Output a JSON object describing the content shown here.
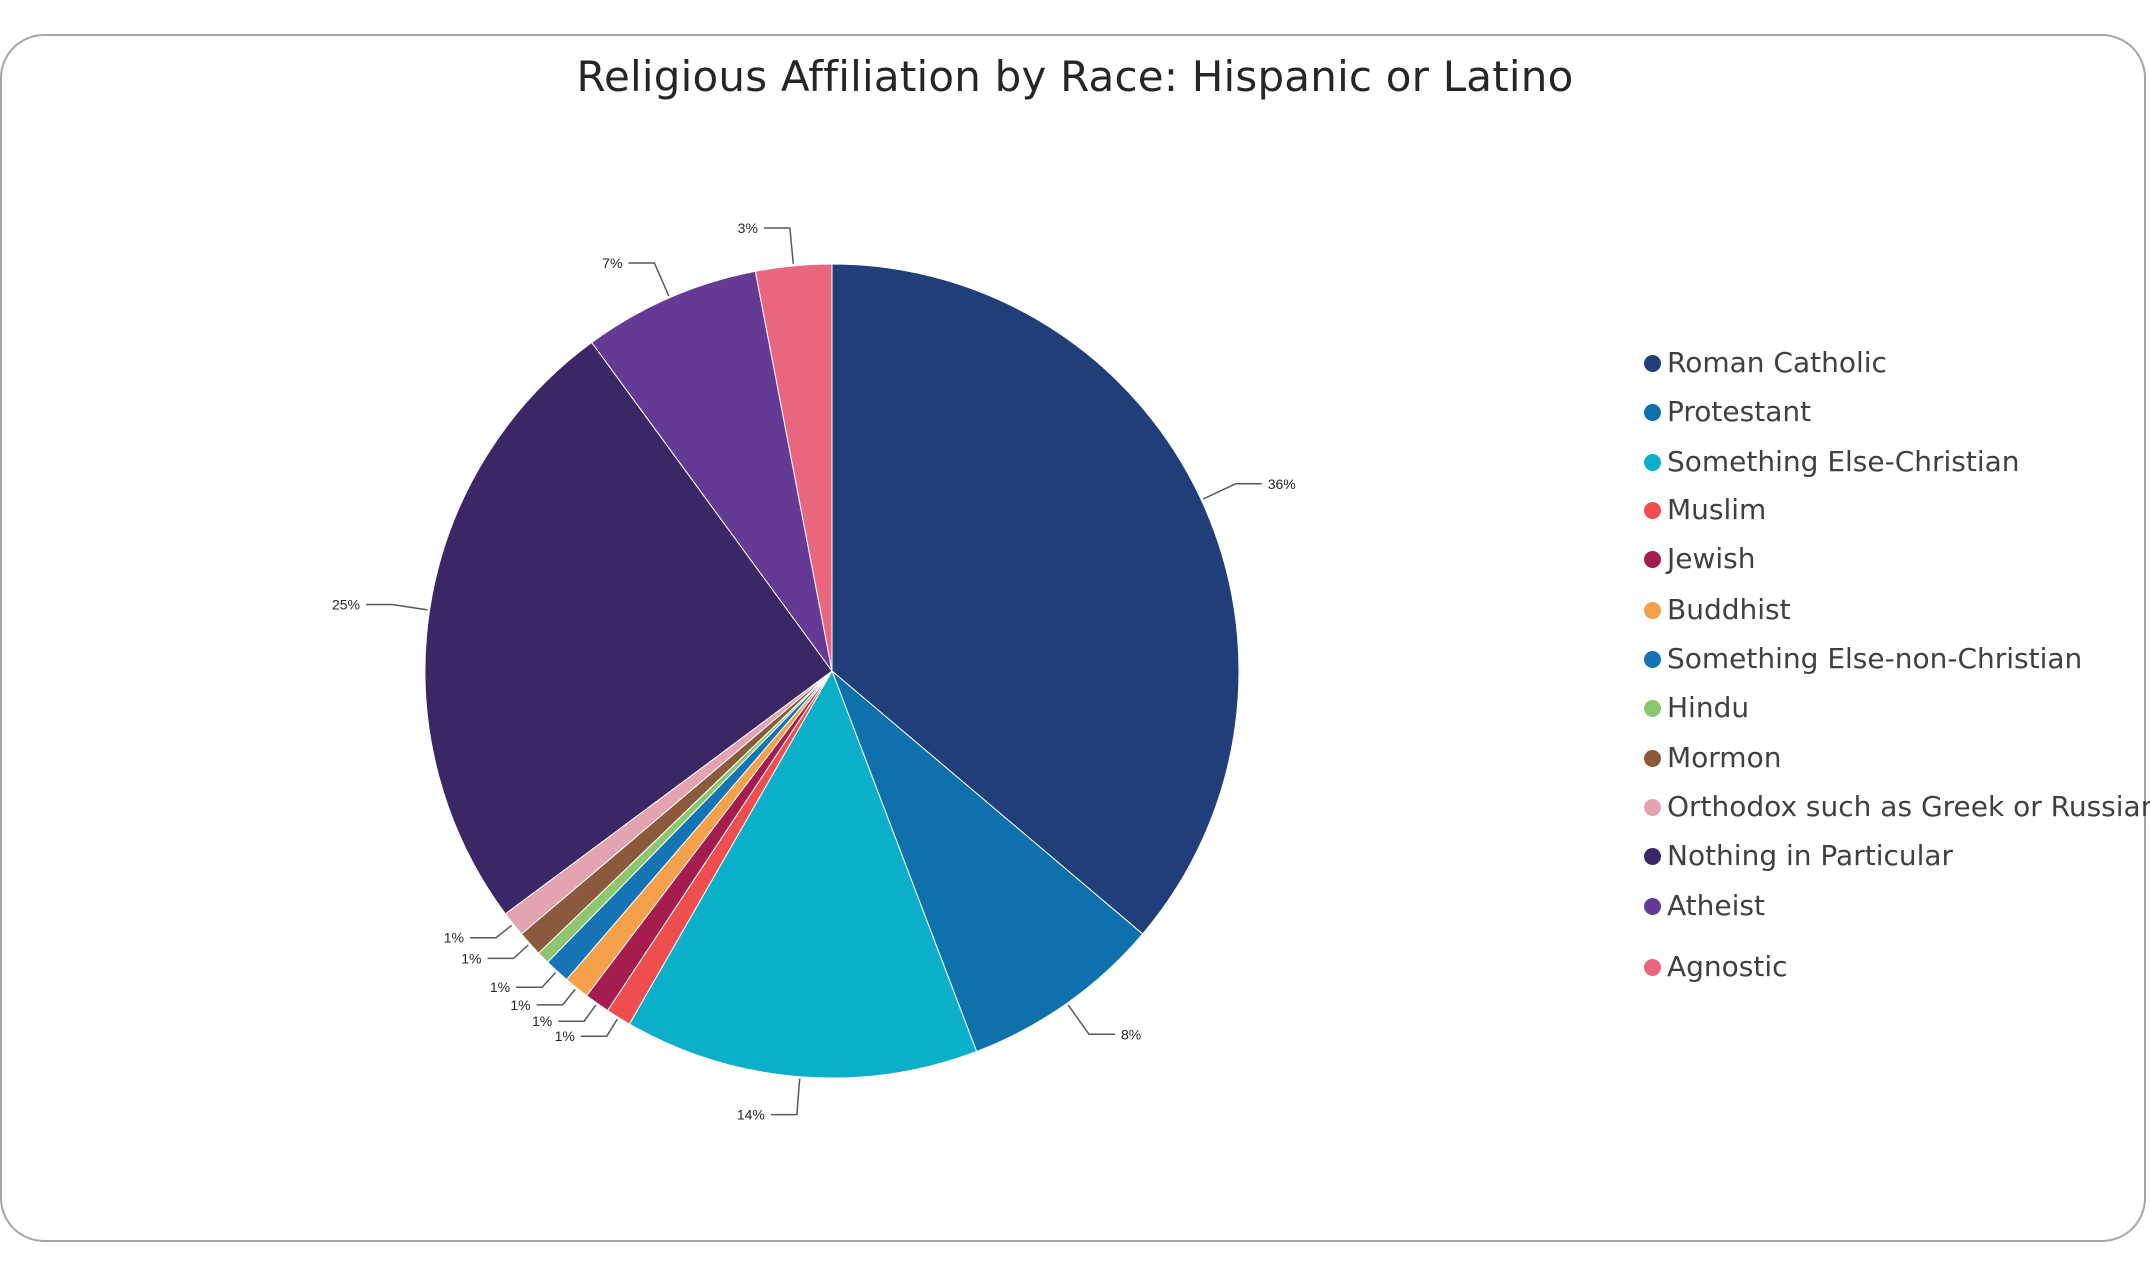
{
  "chart_data": {
    "type": "pie",
    "title": "Religious Affiliation by Race: Hispanic or Latino",
    "slices": [
      {
        "name": "Roman Catholic",
        "value": 36,
        "label": "36%",
        "color": "#1f3e7a"
      },
      {
        "name": "Protestant",
        "value": 8,
        "label": "8%",
        "color": "#0f71ab"
      },
      {
        "name": "Something Else-Christian",
        "value": 14,
        "label": "14%",
        "color": "#0bafca"
      },
      {
        "name": "Muslim",
        "value": 1,
        "label": "1%",
        "color": "#ee4e4e"
      },
      {
        "name": "Jewish",
        "value": 1,
        "label": "1%",
        "color": "#a51c4e"
      },
      {
        "name": "Buddhist",
        "value": 1,
        "label": "1%",
        "color": "#f5a04a"
      },
      {
        "name": "Something Else-non-Christian",
        "value": 1,
        "label": "1%",
        "color": "#1574b4"
      },
      {
        "name": "Hindu",
        "value": 0.5,
        "label": "",
        "color": "#8dc66e"
      },
      {
        "name": "Mormon",
        "value": 1,
        "label": "1%",
        "color": "#8b5a3d"
      },
      {
        "name": "Orthodox such as Greek or Russian",
        "value": 1,
        "label": "1%",
        "color": "#e3a3b1"
      },
      {
        "name": "Nothing in Particular",
        "value": 25,
        "label": "25%",
        "color": "#3b2666"
      },
      {
        "name": "Atheist",
        "value": 7,
        "label": "7%",
        "color": "#653a94"
      },
      {
        "name": "Agnostic",
        "value": 3,
        "label": "3%",
        "color": "#e8667e"
      }
    ],
    "legend_position": "right"
  }
}
